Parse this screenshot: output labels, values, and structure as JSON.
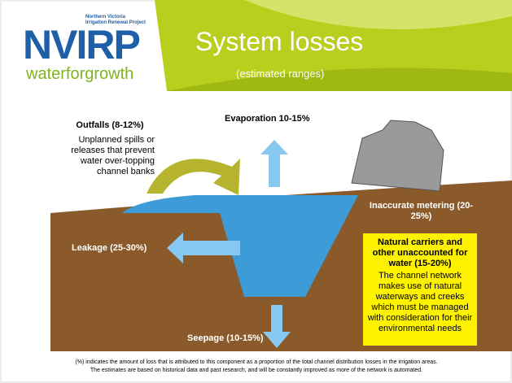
{
  "logo": {
    "tagline": [
      "Northern Victoria",
      "Irrigation Renewal Project"
    ],
    "name": "NVIRP",
    "slogan": "waterforgrowth"
  },
  "header": {
    "title": "System losses",
    "subtitle": "(estimated ranges)"
  },
  "labels": {
    "evaporation": "Evaporation 10-15%",
    "outfalls": {
      "title": "Outfalls (8-12%)",
      "text": "Unplanned spills or releases that prevent water over-topping channel banks"
    },
    "metering": "Inaccurate metering (20-25%)",
    "leakage": "Leakage (25-30%)",
    "natural": {
      "title": "Natural carriers and other unaccounted for water (15-20%)",
      "text": "The channel network makes use of natural waterways and creeks which must be managed with consideration for their environmental needs"
    },
    "seepage": "Seepage (10-15%)"
  },
  "footnote": [
    "(%) indicates the amount of loss that is attributed to this component as a proportion of the total channel distribution losses in the irrigation areas.",
    "The estimates are based on historical data and past research, and will be constantly improved as more of the network is automated."
  ]
}
